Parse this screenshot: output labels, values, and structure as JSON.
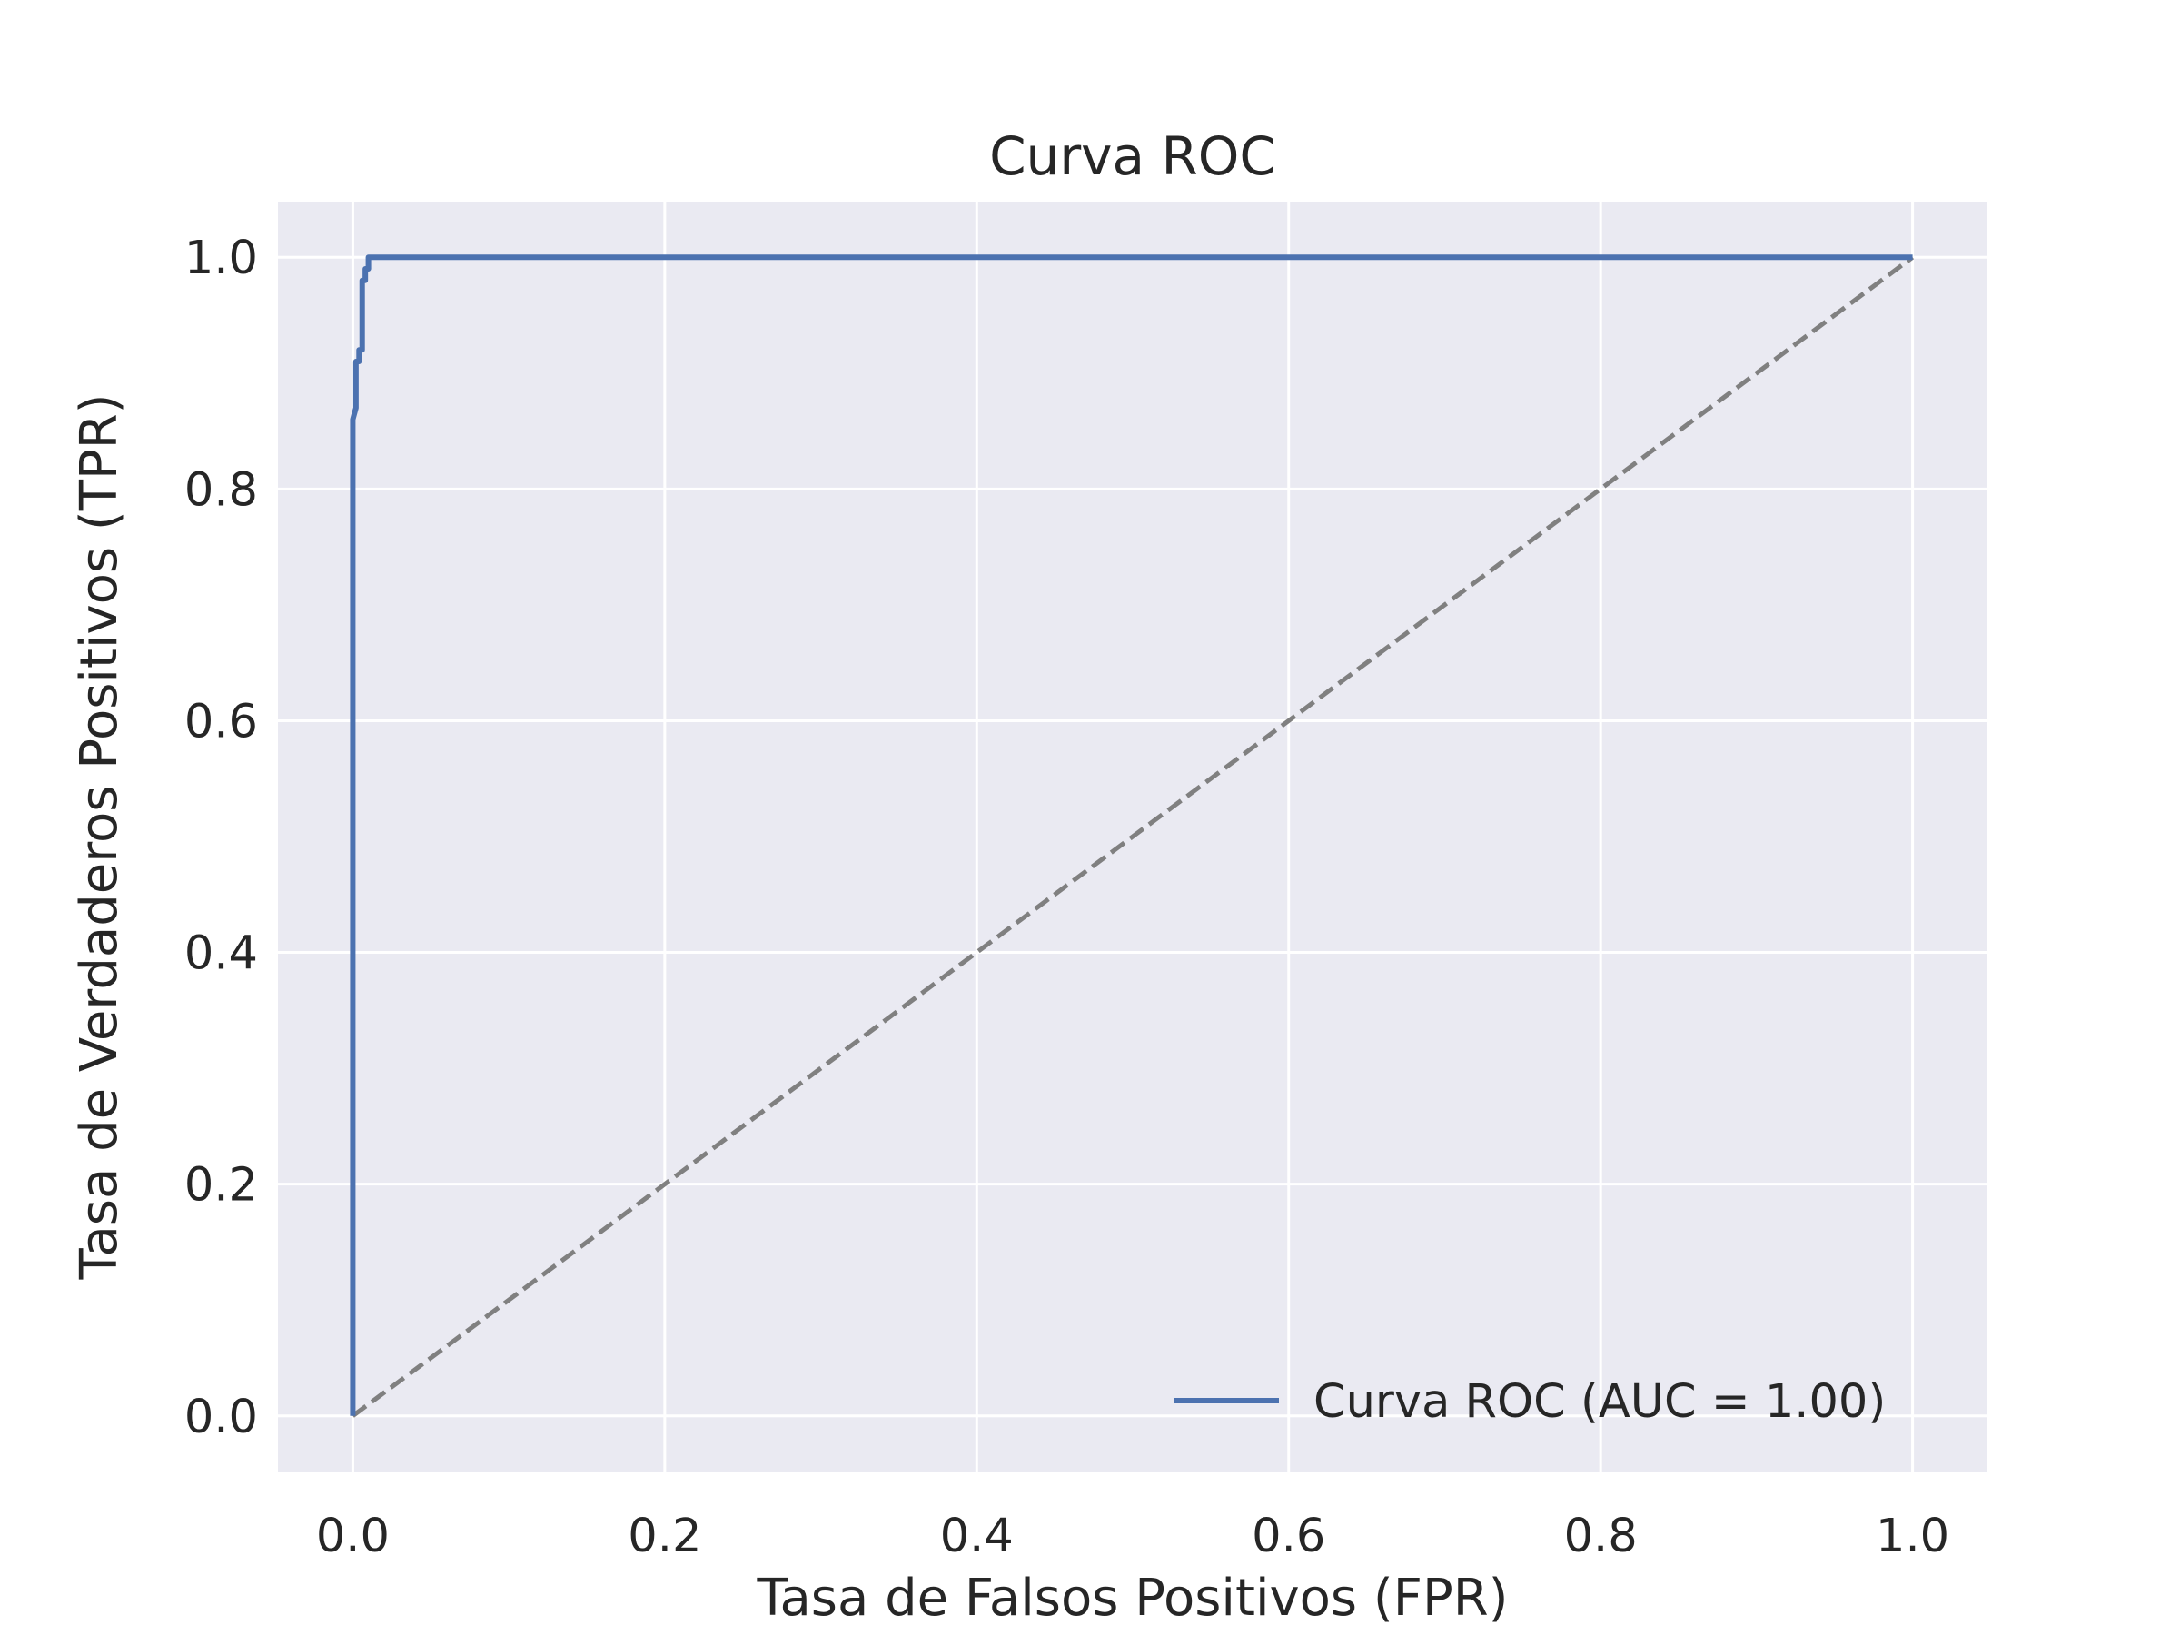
{
  "chart_data": {
    "type": "line",
    "title": "Curva ROC",
    "xlabel": "Tasa de Falsos Positivos (FPR)",
    "ylabel": "Tasa de Verdaderos Positivos (TPR)",
    "xlim": [
      -0.048,
      1.048
    ],
    "ylim": [
      -0.048,
      1.048
    ],
    "xticks": [
      "0.0",
      "0.2",
      "0.4",
      "0.6",
      "0.8",
      "1.0"
    ],
    "yticks": [
      "0.0",
      "0.2",
      "0.4",
      "0.6",
      "0.8",
      "1.0"
    ],
    "grid": true,
    "legend_position": "lower-right",
    "background_color": "#eaeaf2",
    "grid_color": "#ffffff",
    "series": [
      {
        "name": "Curva ROC (AUC = 1.00)",
        "color": "#4c72b0",
        "style": "solid",
        "x": [
          0.0,
          0.0,
          0.002,
          0.002,
          0.004,
          0.004,
          0.006,
          0.006,
          0.008,
          0.008,
          0.01,
          0.01,
          0.012,
          0.012,
          1.0
        ],
        "y": [
          0.0,
          0.86,
          0.87,
          0.91,
          0.91,
          0.92,
          0.92,
          0.98,
          0.98,
          0.99,
          0.99,
          1.0,
          1.0,
          1.0,
          1.0
        ]
      },
      {
        "name": "",
        "color": "#808080",
        "style": "dashed",
        "x": [
          0.0,
          1.0
        ],
        "y": [
          0.0,
          1.0
        ]
      }
    ]
  }
}
